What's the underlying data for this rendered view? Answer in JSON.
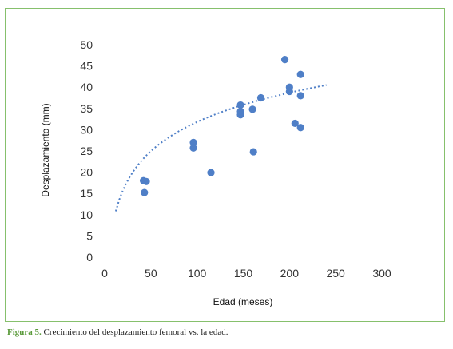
{
  "chart_data": {
    "type": "scatter",
    "title": "",
    "xlabel": "Edad (meses)",
    "ylabel": "Desplazamiento (mm)",
    "xlim": [
      0,
      300
    ],
    "ylim": [
      0,
      50
    ],
    "xticks": [
      0,
      50,
      100,
      150,
      200,
      250,
      300
    ],
    "yticks": [
      0,
      5,
      10,
      15,
      20,
      25,
      30,
      35,
      40,
      45,
      50
    ],
    "grid": false,
    "legend": "none",
    "marker_color": "#4f7fc7",
    "trendline": {
      "type": "logarithmic",
      "style": "dotted",
      "color": "#4f7fc7",
      "x_start": 12,
      "x_end": 240,
      "y_start": 10.8,
      "y_end": 40.5
    },
    "series": [
      {
        "points": [
          [
            42,
            18
          ],
          [
            45,
            17.8
          ],
          [
            43,
            15.2
          ],
          [
            96,
            27
          ],
          [
            96,
            25.7
          ],
          [
            115,
            19.9
          ],
          [
            147,
            35.8
          ],
          [
            147,
            34.3
          ],
          [
            147,
            33.5
          ],
          [
            160,
            34.8
          ],
          [
            161,
            24.8
          ],
          [
            169,
            37.5
          ],
          [
            195,
            46.5
          ],
          [
            200,
            40
          ],
          [
            200,
            39
          ],
          [
            206,
            31.5
          ],
          [
            212,
            43
          ],
          [
            212,
            38
          ],
          [
            212,
            30.5
          ]
        ]
      }
    ]
  },
  "caption": {
    "label": "Figura 5.",
    "text": " Crecimiento del desplazamiento femoral vs. la edad."
  }
}
